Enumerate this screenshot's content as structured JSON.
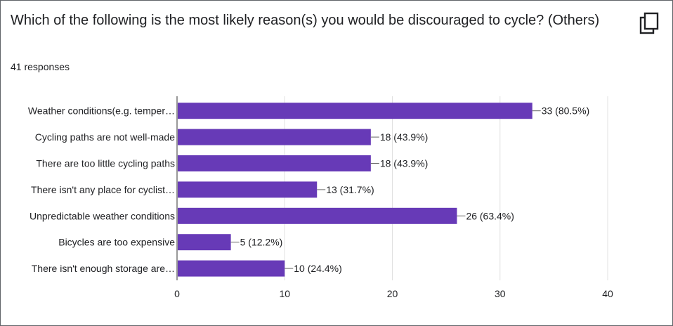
{
  "question": {
    "title": "Which of the following is the most likely reason(s) you would be discouraged to cycle? (Others)",
    "response_count": "41 responses",
    "copy_icon": "copy-icon"
  },
  "colors": {
    "bar": "#673ab7",
    "grid": "#e0e0e0",
    "axis": "#333333",
    "text": "#202124"
  },
  "chart_data": {
    "type": "bar",
    "orientation": "horizontal",
    "categories": [
      "Weather conditions(e.g. temper…",
      "Cycling paths are not well-made",
      "There are too little cycling paths",
      "There isn't any place for cyclist…",
      "Unpredictable weather conditions",
      "Bicycles are too expensive",
      "There isn't enough storage are…"
    ],
    "values": [
      33,
      18,
      18,
      13,
      26,
      5,
      10
    ],
    "data_labels": [
      "33 (80.5%)",
      "18 (43.9%)",
      "18 (43.9%)",
      "13 (31.7%)",
      "26 (63.4%)",
      "5 (12.2%)",
      "10 (24.4%)"
    ],
    "xlim": [
      0,
      40
    ],
    "xticks": [
      "0",
      "10",
      "20",
      "30",
      "40"
    ],
    "grid": true,
    "legend": "none"
  }
}
